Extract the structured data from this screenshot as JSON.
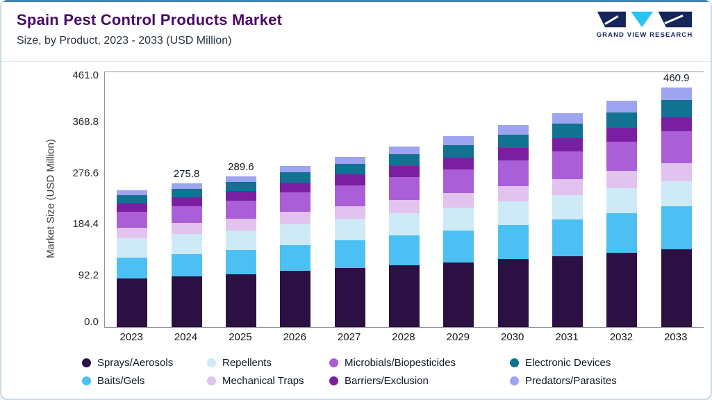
{
  "header": {
    "title": "Spain Pest Control Products Market",
    "subtitle": "Size, by Product, 2023 - 2033 (USD Million)"
  },
  "brand": {
    "name": "GRAND VIEW RESEARCH",
    "logo_navy": "#16265c",
    "logo_cyan": "#29c4f1"
  },
  "chart_data": {
    "type": "bar",
    "stacked": true,
    "title": "Spain Pest Control Products Market Size, by Product, 2023 - 2033 (USD Million)",
    "ylabel": "Market Size (USD Million)",
    "ylim": [
      0,
      461.0
    ],
    "ytick_labels": [
      "461.0",
      "368.8",
      "276.6",
      "184.4",
      "92.2",
      "0.0"
    ],
    "grid": false,
    "legend_position": "bottom",
    "categories": [
      "2023",
      "2024",
      "2025",
      "2026",
      "2027",
      "2028",
      "2029",
      "2030",
      "2031",
      "2032",
      "2033"
    ],
    "bar_total_labels": [
      "",
      "275.8",
      "289.6",
      "",
      "",
      "",
      "",
      "",
      "",
      "",
      "460.9"
    ],
    "totals_estimated": [
      262.4,
      275.8,
      289.6,
      309.7,
      327.3,
      346.5,
      366.5,
      387.9,
      410.8,
      435.1,
      460.9
    ],
    "series": [
      {
        "name": "Sprays/Aerosols",
        "color": "#2b1043",
        "values": [
          94.0,
          98.0,
          102.0,
          108.2,
          113.3,
          118.8,
          124.4,
          130.4,
          136.6,
          143.2,
          150.0
        ]
      },
      {
        "name": "Baits/Gels",
        "color": "#4cc0f2",
        "values": [
          40.0,
          42.8,
          45.6,
          49.6,
          53.3,
          57.3,
          61.5,
          66.1,
          71.0,
          76.3,
          82.0
        ]
      },
      {
        "name": "Repellents",
        "color": "#cfeaf7",
        "values": [
          37.0,
          37.8,
          38.6,
          40.1,
          41.2,
          42.4,
          43.5,
          44.7,
          46.0,
          47.2,
          48.5
        ]
      },
      {
        "name": "Mechanical Traps",
        "color": "#e2c2ee",
        "values": [
          20.0,
          21.1,
          22.1,
          23.7,
          25.0,
          26.5,
          28.0,
          29.6,
          31.3,
          33.1,
          35.0
        ]
      },
      {
        "name": "Microbials/Biopesticides",
        "color": "#ab5fd6",
        "values": [
          30.0,
          32.0,
          34.2,
          37.1,
          39.8,
          42.8,
          45.9,
          49.3,
          52.9,
          56.8,
          61.0
        ]
      },
      {
        "name": "Barriers/Exclusion",
        "color": "#7b1fa2",
        "values": [
          17.0,
          17.7,
          18.5,
          19.6,
          20.6,
          21.6,
          22.7,
          23.8,
          25.0,
          26.2,
          27.5
        ]
      },
      {
        "name": "Electronic Devices",
        "color": "#117291",
        "values": [
          15.5,
          16.6,
          17.8,
          19.4,
          20.8,
          22.4,
          24.2,
          26.0,
          28.0,
          30.2,
          32.5
        ]
      },
      {
        "name": "Predators/Parasites",
        "color": "#9ea4ef",
        "values": [
          8.9,
          9.8,
          10.8,
          12.0,
          13.3,
          14.7,
          16.3,
          18.0,
          20.0,
          22.1,
          24.4
        ]
      }
    ],
    "legend": [
      "Sprays/Aerosols",
      "Repellents",
      "Microbials/Biopesticides",
      "Electronic Devices",
      "Baits/Gels",
      "Mechanical Traps",
      "Barriers/Exclusion",
      "Predators/Parasites"
    ]
  }
}
